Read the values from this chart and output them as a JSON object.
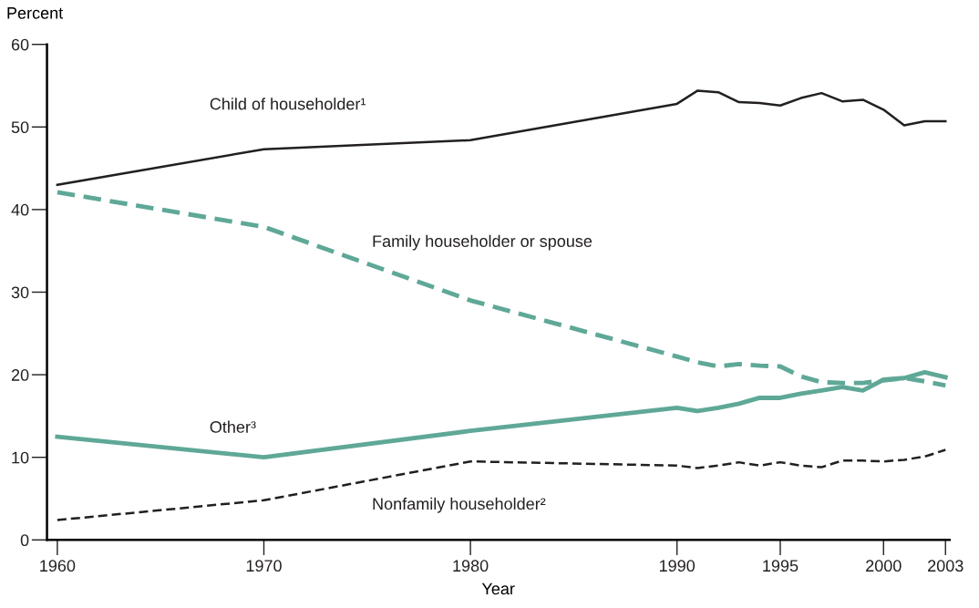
{
  "chart_data": {
    "type": "line",
    "ylabel": "Percent",
    "xlabel": "Year",
    "xlim": [
      1959.5,
      2003.2
    ],
    "ylim": [
      0,
      60
    ],
    "xticks": [
      1960,
      1970,
      1980,
      1990,
      1995,
      2000,
      2003
    ],
    "yticks": [
      0,
      10,
      20,
      30,
      40,
      50,
      60
    ],
    "grid": false,
    "legend": false,
    "x": [
      1960,
      1970,
      1980,
      1990,
      1991,
      1992,
      1993,
      1994,
      1995,
      1996,
      1997,
      1998,
      1999,
      2000,
      2001,
      2002,
      2003
    ],
    "series": [
      {
        "name": "Child of householder¹",
        "color": "#231f20",
        "line_style": "solid",
        "values": [
          43.0,
          47.3,
          48.4,
          52.8,
          54.4,
          54.2,
          53.0,
          52.9,
          52.6,
          53.5,
          54.1,
          53.1,
          53.3,
          52.1,
          50.2,
          50.7,
          50.7
        ]
      },
      {
        "name": "Family householder or spouse",
        "color": "#5fa897",
        "line_style": "dashed",
        "values": [
          42.1,
          37.9,
          29.0,
          22.2,
          21.5,
          21.0,
          21.3,
          21.1,
          21.0,
          19.8,
          19.1,
          19.0,
          19.0,
          19.3,
          19.6,
          19.2,
          18.7
        ]
      },
      {
        "name": "Other³",
        "color": "#5fa897",
        "line_style": "solid",
        "values": [
          12.5,
          10.0,
          13.2,
          16.0,
          15.6,
          16.0,
          16.5,
          17.2,
          17.2,
          17.7,
          18.1,
          18.5,
          18.1,
          19.4,
          19.6,
          20.3,
          19.7
        ]
      },
      {
        "name": "Nonfamily householder²",
        "color": "#231f20",
        "line_style": "dashed",
        "values": [
          2.4,
          4.8,
          9.5,
          9.0,
          8.7,
          9.0,
          9.4,
          9.0,
          9.4,
          9.0,
          8.8,
          9.6,
          9.6,
          9.5,
          9.7,
          10.1,
          10.9
        ]
      }
    ]
  }
}
